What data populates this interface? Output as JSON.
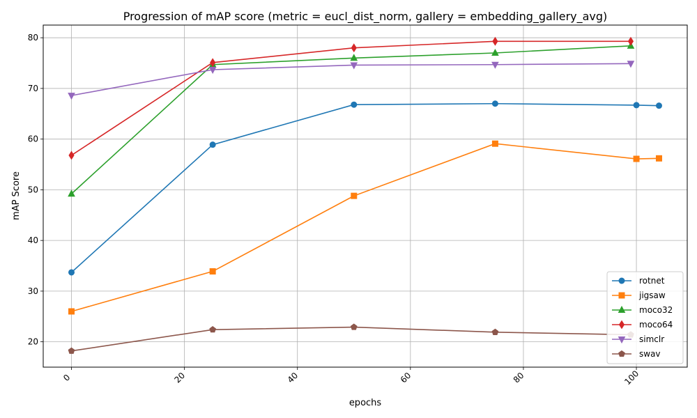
{
  "chart_data": {
    "type": "line",
    "title": "Progression of mAP score (metric = eucl_dist_norm, gallery = embedding_gallery_avg)",
    "xlabel": "epochs",
    "ylabel": "mAP Score",
    "xlim": [
      -5,
      109
    ],
    "ylim": [
      15,
      82.5
    ],
    "xticks": [
      0,
      20,
      40,
      60,
      80,
      100
    ],
    "yticks": [
      20,
      30,
      40,
      50,
      60,
      70,
      80
    ],
    "grid": true,
    "legend_position": "lower-right",
    "x": [
      0,
      25,
      50,
      75,
      100,
      104
    ],
    "series": [
      {
        "name": "rotnet",
        "color": "#1f77b4",
        "marker": "circle",
        "x": [
          0,
          25,
          50,
          75,
          100,
          104
        ],
        "values": [
          33.7,
          58.9,
          66.8,
          67.0,
          66.7,
          66.6
        ]
      },
      {
        "name": "jigsaw",
        "color": "#ff7f0e",
        "marker": "square",
        "x": [
          0,
          25,
          50,
          75,
          100,
          104
        ],
        "values": [
          26.0,
          33.9,
          48.8,
          59.1,
          56.1,
          56.2
        ]
      },
      {
        "name": "moco32",
        "color": "#2ca02c",
        "marker": "triangle-up",
        "x": [
          0,
          25,
          50,
          75,
          99
        ],
        "values": [
          49.2,
          74.7,
          76.0,
          77.0,
          78.4
        ]
      },
      {
        "name": "moco64",
        "color": "#d62728",
        "marker": "diamond",
        "x": [
          0,
          25,
          50,
          75,
          99
        ],
        "values": [
          56.8,
          75.1,
          78.0,
          79.3,
          79.3
        ]
      },
      {
        "name": "simclr",
        "color": "#9467bd",
        "marker": "triangle-down",
        "x": [
          0,
          25,
          50,
          75,
          99
        ],
        "values": [
          68.6,
          73.7,
          74.6,
          74.7,
          74.9
        ]
      },
      {
        "name": "swav",
        "color": "#8c564b",
        "marker": "pentagon",
        "x": [
          0,
          25,
          50,
          75,
          99
        ],
        "values": [
          18.2,
          22.4,
          22.9,
          21.9,
          21.4
        ]
      }
    ]
  }
}
